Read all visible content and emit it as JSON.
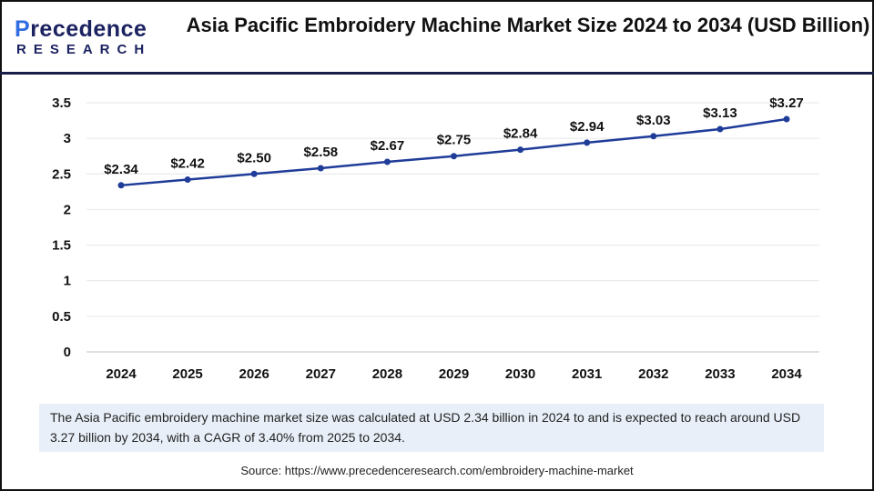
{
  "logo": {
    "line1_a": "P",
    "line1_b": "recedence",
    "line2": "RESEARCH"
  },
  "title": "Asia Pacific Embroidery Machine Market Size 2024 to 2034 (USD Billion)",
  "chart_data": {
    "type": "line",
    "title": "Asia Pacific Embroidery Machine Market Size 2024 to 2034 (USD Billion)",
    "categories": [
      "2024",
      "2025",
      "2026",
      "2027",
      "2028",
      "2029",
      "2030",
      "2031",
      "2032",
      "2033",
      "2034"
    ],
    "values": [
      2.34,
      2.42,
      2.5,
      2.58,
      2.67,
      2.75,
      2.84,
      2.94,
      3.03,
      3.13,
      3.27
    ],
    "data_labels": [
      "$2.34",
      "$2.42",
      "$2.50",
      "$2.58",
      "$2.67",
      "$2.75",
      "$2.84",
      "$2.94",
      "$3.03",
      "$3.13",
      "$3.27"
    ],
    "yticks": [
      "0",
      "0.5",
      "1",
      "1.5",
      "2",
      "2.5",
      "3",
      "3.5"
    ],
    "ylim": [
      0,
      3.5
    ],
    "grid": true,
    "line_color": "#1f3c99"
  },
  "note": "The Asia Pacific embroidery machine market size was calculated at USD 2.34 billion in 2024 to and is expected to reach around USD 3.27 billion by 2034, with a CAGR of 3.40% from 2025 to 2034.",
  "source": "Source: https://www.precedenceresearch.com/embroidery-machine-market"
}
